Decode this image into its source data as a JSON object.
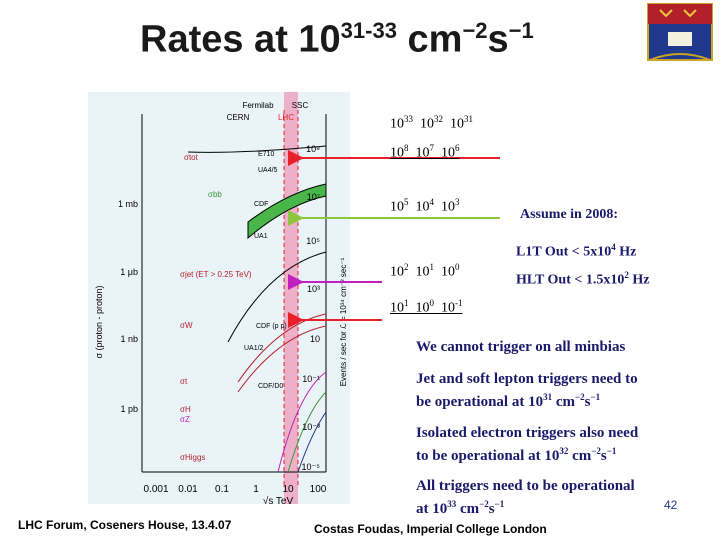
{
  "slide": {
    "title_base": "Rates at 10",
    "title_exp": "31-33",
    "title_tail": " cm",
    "title_exp2": "−2",
    "title_s": "s",
    "title_exp3": "−1",
    "footer_left": "LHC Forum, Coseners House, 13.4.07",
    "footer_right": "Costas Foudas, Imperial College London",
    "page_number": "42"
  },
  "rate_labels": [
    {
      "id": "lumi",
      "b1": "10",
      "e1": "33",
      "b2": "10",
      "e2": "32",
      "b3": "10",
      "e3": "31",
      "underline": false
    },
    {
      "id": "r1",
      "b1": "10",
      "e1": "8",
      "b2": "10",
      "e2": "7",
      "b3": "10",
      "e3": "6",
      "underline": true
    },
    {
      "id": "r2",
      "b1": "10",
      "e1": "5",
      "b2": "10",
      "e2": "4",
      "b3": "10",
      "e3": "3",
      "underline": false
    },
    {
      "id": "r3",
      "b1": "10",
      "e1": "2",
      "b2": "10",
      "e2": "1",
      "b3": "10",
      "e3": "0",
      "underline": false
    },
    {
      "id": "r4",
      "b1": "10",
      "e1": "1",
      "b2": "10",
      "e2": "0",
      "b3": "10",
      "e3": "-1",
      "underline": true
    }
  ],
  "notes": {
    "assume": "Assume in 2008:",
    "l1t_pre": "L1T Out < 5x10",
    "l1t_exp": "4",
    "l1t_post": " Hz",
    "hlt_pre": "HLT Out < 1.5x10",
    "hlt_exp": "2",
    "hlt_post": " Hz",
    "minbias": "We cannot trigger on all minbias",
    "jet_l1": "Jet and soft lepton triggers need to",
    "jet_l2_pre": "be operational at 10",
    "jet_l2_exp": "31",
    "jet_l2_mid": " cm",
    "jet_l2_exp2": "−2",
    "jet_l2_s": "s",
    "jet_l2_exp3": "−1",
    "iso_l1": "Isolated electron triggers also need",
    "iso_l2_pre": "to be operational at 10",
    "iso_l2_exp": "32",
    "iso_l2_mid": " cm",
    "iso_l2_exp2": "−2",
    "iso_l2_s": "s",
    "iso_l2_exp3": "−1",
    "all_l1": "All triggers need to be operational",
    "all_l2_pre": "at 10",
    "all_l2_exp": "33",
    "all_l2_mid": " cm",
    "all_l2_exp2": "−2",
    "all_l2_s": "s",
    "all_l2_exp3": "−1"
  },
  "arrows": [
    {
      "id": "to-r1",
      "color": "#e8202a"
    },
    {
      "id": "to-r2",
      "color": "#8cc63f"
    },
    {
      "id": "to-r3",
      "color": "#c020c0"
    },
    {
      "id": "to-r4",
      "color": "#e8202a"
    }
  ],
  "chart_data": {
    "type": "line",
    "xlabel": "√s  TeV",
    "ylabel_left": "σ (proton - proton)",
    "ylabel_right": "Events / sec for ℒ = 10³⁴ cm⁻² sec⁻¹",
    "x_ticks": [
      "0.001",
      "0.01",
      "0.1",
      "1",
      "10",
      "100"
    ],
    "y_ticks_left": [
      "1 mb",
      "1 μb",
      "1 nb",
      "1 pb"
    ],
    "y_ticks_right": [
      "10⁹",
      "10⁷",
      "10⁵",
      "10³",
      "10",
      "10⁻¹",
      "10⁻³",
      "10⁻⁵"
    ],
    "top_labels": [
      "Fermilab",
      "SSC",
      "CERN",
      "LHC"
    ],
    "series": [
      {
        "name": "σtot"
      },
      {
        "name": "σbb"
      },
      {
        "name": "σjet (ET > 0.25 TeV)"
      },
      {
        "name": "σW"
      },
      {
        "name": "σZ"
      },
      {
        "name": "σt"
      },
      {
        "name": "σH"
      },
      {
        "name": "σHiggs"
      }
    ],
    "point_labels": [
      "E710",
      "UA4/5",
      "CDF",
      "UA1",
      "CDF (p p)",
      "UA1/2",
      "CDF/D0"
    ]
  },
  "colors": {
    "lhc_band": "#f06090",
    "panel_bg": "#eaf4f8",
    "note_text": "#1a1a6a"
  }
}
